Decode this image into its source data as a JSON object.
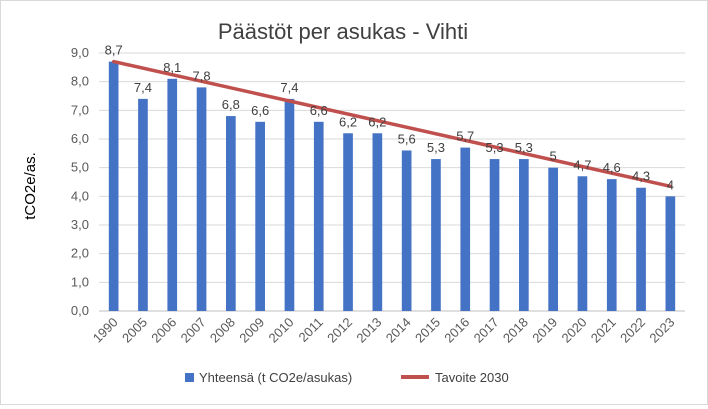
{
  "chart_data": {
    "type": "bar",
    "title": "Päästöt per asukas - Vihti",
    "xlabel": "",
    "ylabel": "tCO2e/as.",
    "ylim": [
      0,
      9
    ],
    "ytick_step": 1,
    "ytick_labels": [
      "0,0",
      "1,0",
      "2,0",
      "3,0",
      "4,0",
      "5,0",
      "6,0",
      "7,0",
      "8,0",
      "9,0"
    ],
    "grid": true,
    "legend_position": "bottom",
    "categories": [
      "1990",
      "2005",
      "2006",
      "2007",
      "2008",
      "2009",
      "2010",
      "2011",
      "2012",
      "2013",
      "2014",
      "2015",
      "2016",
      "2017",
      "2018",
      "2019",
      "2020",
      "2021",
      "2022",
      "2023"
    ],
    "series": [
      {
        "name": "Yhteensä (t CO2e/asukas)",
        "kind": "bar",
        "color": "#4472c4",
        "values": [
          8.7,
          7.4,
          8.1,
          7.8,
          6.8,
          6.6,
          7.4,
          6.6,
          6.2,
          6.2,
          5.6,
          5.3,
          5.7,
          5.3,
          5.3,
          5.0,
          4.7,
          4.6,
          4.3,
          4.0
        ],
        "data_labels": [
          "8,7",
          "7,4",
          "8,1",
          "7,8",
          "6,8",
          "6,6",
          "7,4",
          "6,6",
          "6,2",
          "6,2",
          "5,6",
          "5,3",
          "5,7",
          "5,3",
          "5,3",
          "5",
          "4,7",
          "4,6",
          "4,3",
          "4"
        ]
      },
      {
        "name": "Tavoite 2030",
        "kind": "line",
        "color": "#c0504d",
        "start": 8.7,
        "end": 4.35
      }
    ]
  }
}
